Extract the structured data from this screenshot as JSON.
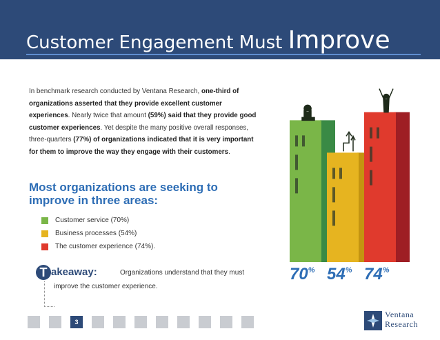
{
  "header": {
    "title_main": "Customer Engagement Must",
    "title_big": "Improve"
  },
  "intro": {
    "p1": "In benchmark research conducted by Ventana Research, ",
    "b1": "one-third of organizations asserted that they provide excellent customer experiences",
    "p2": ". Nearly twice that amount ",
    "b2": "(59%) said that they provide good customer experiences",
    "p3": ". Yet despite the many positive overall responses, three-quarters ",
    "b3": "(77%) of organizations indicated that it is very important for them to improve the way they engage with their customers",
    "p4": "."
  },
  "subhead": "Most organizations are seeking to improve in three areas:",
  "legend": [
    {
      "label": "Customer service (70%)",
      "color": "#7ab648"
    },
    {
      "label": "Business processes (54%)",
      "color": "#e6b420"
    },
    {
      "label": "The customer experience (74%).",
      "color": "#e03a2d"
    }
  ],
  "takeaway": {
    "icon": "T",
    "head": "akeaway:",
    "line1": "Organizations understand that they must",
    "line2": "improve the customer experience."
  },
  "chart_data": {
    "type": "bar",
    "categories": [
      "Customer service",
      "Business processes",
      "The customer experience"
    ],
    "values": [
      70,
      54,
      74
    ],
    "value_labels": [
      "70",
      "54",
      "74"
    ],
    "unit": "%",
    "colors": [
      "#7ab648",
      "#e6b420",
      "#e03a2d"
    ],
    "side_colors": [
      "#3a8a45",
      "#c49410",
      "#9e1e24"
    ]
  },
  "pager": {
    "pages": [
      "",
      "",
      "3",
      "",
      "",
      "",
      "",
      "",
      "",
      "",
      ""
    ],
    "active": 2
  },
  "logo": {
    "line1": "Ventana",
    "line2": "Research"
  }
}
